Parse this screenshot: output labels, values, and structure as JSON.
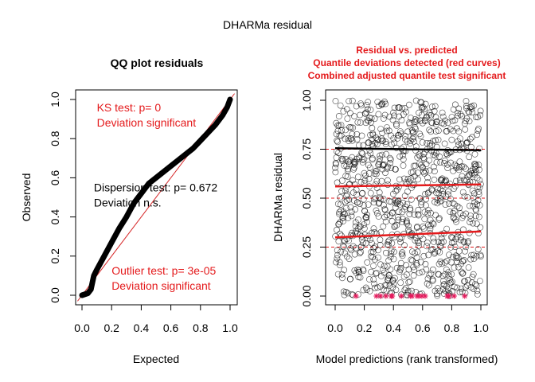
{
  "figure": {
    "title": "DHARMa residual"
  },
  "chart_data": [
    {
      "type": "scatter",
      "title": "QQ plot residuals",
      "xlabel": "Expected",
      "ylabel": "Observed",
      "xlim": [
        0,
        1
      ],
      "ylim": [
        0,
        1
      ],
      "xticks": [
        "0.0",
        "0.2",
        "0.4",
        "0.6",
        "0.8",
        "1.0"
      ],
      "yticks": [
        "0.0",
        "0.2",
        "0.4",
        "0.6",
        "0.8",
        "1.0"
      ],
      "reference_line": {
        "from": [
          0,
          0
        ],
        "to": [
          1,
          1
        ],
        "color": "#d62728"
      },
      "qq_curve": [
        [
          0.0,
          0.0
        ],
        [
          0.04,
          0.01
        ],
        [
          0.06,
          0.03
        ],
        [
          0.08,
          0.1
        ],
        [
          0.1,
          0.13
        ],
        [
          0.15,
          0.2
        ],
        [
          0.2,
          0.27
        ],
        [
          0.25,
          0.34
        ],
        [
          0.3,
          0.4
        ],
        [
          0.35,
          0.47
        ],
        [
          0.4,
          0.52
        ],
        [
          0.45,
          0.57
        ],
        [
          0.5,
          0.6
        ],
        [
          0.55,
          0.63
        ],
        [
          0.6,
          0.66
        ],
        [
          0.65,
          0.69
        ],
        [
          0.7,
          0.72
        ],
        [
          0.75,
          0.75
        ],
        [
          0.8,
          0.79
        ],
        [
          0.85,
          0.83
        ],
        [
          0.9,
          0.87
        ],
        [
          0.95,
          0.92
        ],
        [
          0.98,
          0.96
        ],
        [
          1.0,
          1.0
        ]
      ],
      "annotations": [
        {
          "lines": [
            "KS test: p= 0",
            "Deviation  significant"
          ],
          "color": "#e41a1c",
          "at": [
            0.1,
            0.94
          ]
        },
        {
          "lines": [
            "Dispersion test: p= 0.672",
            "Deviation  n.s."
          ],
          "color": "#000000",
          "at": [
            0.08,
            0.53
          ]
        },
        {
          "lines": [
            "Outlier test: p= 3e-05",
            "Deviation  significant"
          ],
          "color": "#e41a1c",
          "at": [
            0.2,
            0.105
          ]
        }
      ]
    },
    {
      "type": "scatter",
      "title_lines": [
        "Residual vs. predicted",
        "Quantile deviations detected (red curves)",
        "Combined adjusted quantile test significant"
      ],
      "title_color": "#e41a1c",
      "xlabel": "Model predictions (rank transformed)",
      "ylabel": "DHARMa residual",
      "xlim": [
        0,
        1
      ],
      "ylim": [
        0,
        1
      ],
      "xticks": [
        "0.0",
        "0.2",
        "0.4",
        "0.6",
        "0.8",
        "1.0"
      ],
      "yticks": [
        "0.00",
        "0.25",
        "0.50",
        "0.75",
        "1.00"
      ],
      "point_count": 1000,
      "reference_lines_y": [
        0.25,
        0.5,
        0.75
      ],
      "quantile_fits": [
        {
          "quantile": 0.25,
          "color": "#e41a1c",
          "y_start": 0.3,
          "y_end": 0.33
        },
        {
          "quantile": 0.5,
          "color": "#e41a1c",
          "y_start": 0.56,
          "y_end": 0.57
        },
        {
          "quantile": 0.75,
          "color": "#000000",
          "y_start": 0.755,
          "y_end": 0.745
        }
      ],
      "outlier_color": "#e41a5c"
    }
  ]
}
